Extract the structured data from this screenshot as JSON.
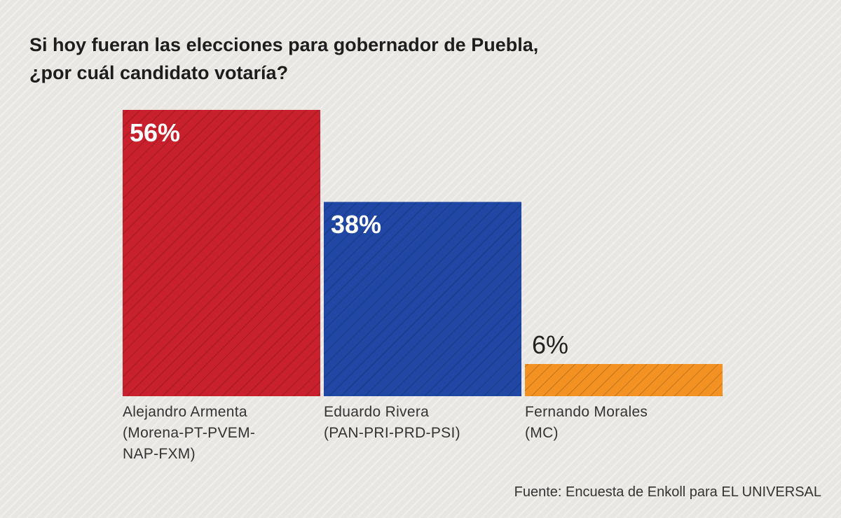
{
  "chart_data": {
    "type": "bar",
    "title": "Si hoy fueran las elecciones para gobernador de Puebla, ¿por cuál candidato votaría?",
    "title_lines": [
      "Si hoy fueran las elecciones para gobernador de Puebla,",
      "¿por cuál candidato votaría?"
    ],
    "categories": [
      "Alejandro Armenta",
      "Eduardo Rivera",
      "Fernando Morales"
    ],
    "category_lines": [
      [
        "Alejandro Armenta",
        "(Morena-PT-PVEM-",
        "NAP-FXM)"
      ],
      [
        "Eduardo Rivera",
        "(PAN-PRI-PRD-PSI)"
      ],
      [
        "Fernando Morales",
        "(MC)"
      ]
    ],
    "values": [
      56,
      38,
      6
    ],
    "data_labels": [
      "56%",
      "38%",
      "6%"
    ],
    "colors": [
      "#c8202c",
      "#1f47a3",
      "#f39122"
    ],
    "xlabel": "",
    "ylabel": "",
    "ylim": [
      0,
      56
    ],
    "grid": false,
    "source": "Fuente: Encuesta de Enkoll para EL UNIVERSAL"
  }
}
